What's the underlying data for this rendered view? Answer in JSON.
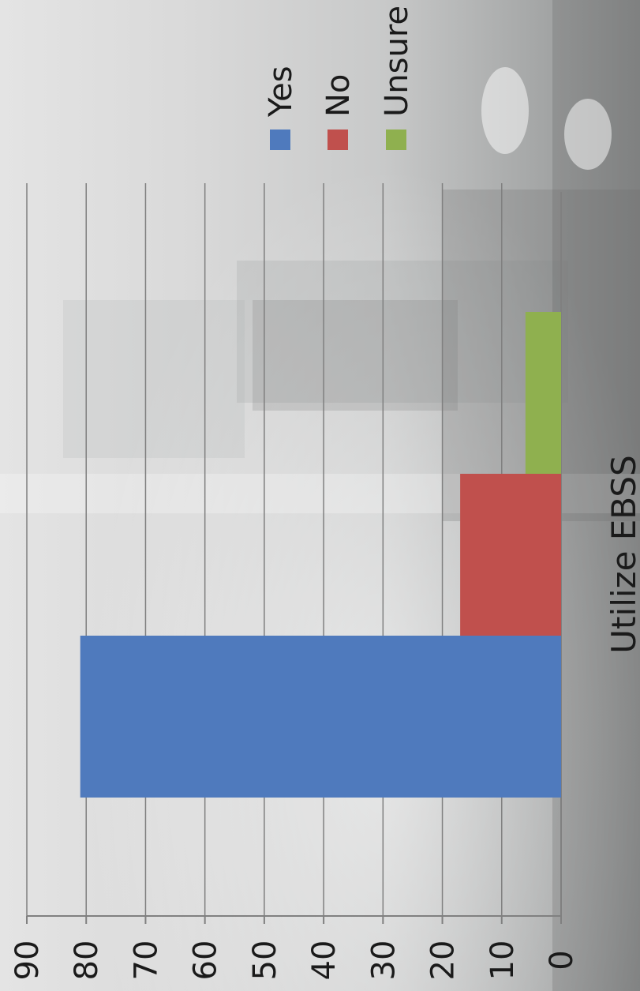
{
  "chart_data": {
    "type": "bar",
    "orientation": "rotated-90-ccw",
    "categories": [
      "Utilize EBSS"
    ],
    "xlabel": "Utilize EBSS",
    "ylim": [
      0,
      90
    ],
    "y_ticks": [
      "0",
      "10",
      "20",
      "30",
      "40",
      "50",
      "60",
      "70",
      "80",
      "90"
    ],
    "series": [
      {
        "name": "Yes",
        "values": [
          81
        ],
        "color": "#4f7abd"
      },
      {
        "name": "No",
        "values": [
          17
        ],
        "color": "#c0504d"
      },
      {
        "name": "Unsure",
        "values": [
          6
        ],
        "color": "#8fb04f"
      }
    ],
    "grid": true,
    "legend_position": "top-right"
  }
}
